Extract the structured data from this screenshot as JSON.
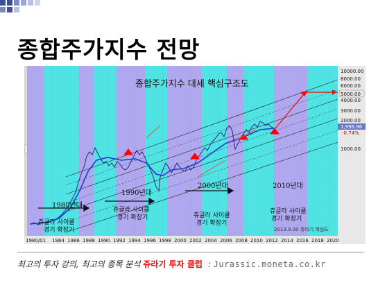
{
  "slide": {
    "title": "종합주가지수 전망",
    "colors": {
      "title": "#000000",
      "accent_red": "#ff0000",
      "square_blue": "#3b4f9a"
    }
  },
  "chart": {
    "heading": "종합주가지수 대세 핵심구조도",
    "y_axis_labels": [
      "10000.00",
      "8000.00",
      "6000.00",
      "5000.00",
      "4000.00",
      "3000.00",
      "2000.00",
      "1000.00"
    ],
    "price_badge": "1,996.96",
    "change_badge": "-0.74%",
    "x_axis_labels": [
      "1980/01",
      "1984",
      "1986",
      "1988",
      "1990",
      "1992",
      "1994",
      "1996",
      "1998",
      "2000",
      "2002",
      "2004",
      "2006",
      "2008",
      "2010",
      "2012",
      "2014",
      "2016",
      "2018",
      "2020"
    ],
    "decade_labels": [
      "1980년대",
      "1990년대",
      "2000년대",
      "2010년대"
    ],
    "cycle_label_line1": "쥬글라 사이클",
    "cycle_label_line2": "경기 확장기",
    "signature": "2013.9.30 쥬라기 핵심도",
    "colors": {
      "bg_cyan": "#4fe3e3",
      "band_purple": "#b0a8ef",
      "price": "#2a2a8a",
      "ma": "#1a3fc8",
      "up_arrow": "#ff0000"
    }
  },
  "footer": {
    "text_italic": "최고의 투자 강의, 최고의 종목 분석",
    "text_brand": "쥬라기 투자 클럽",
    "separator": ":",
    "url": "Jurassic.moneta.co.kr"
  }
}
